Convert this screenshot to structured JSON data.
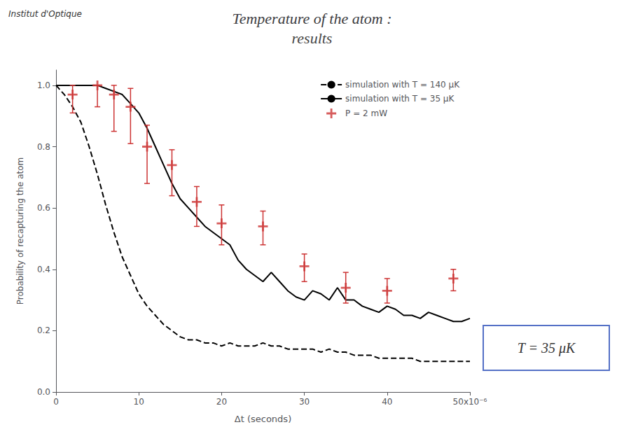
{
  "chart_data": {
    "type": "line",
    "title": "Temperature of the atom :",
    "subtitle": "results",
    "xlabel": "Δt (seconds)",
    "ylabel": "Probability of recapturing the atom",
    "xlim": [
      0,
      5e-05
    ],
    "ylim": [
      0,
      1.05
    ],
    "xticks": [
      0,
      {
        "value": 1e-05,
        "label": "10"
      },
      {
        "value": 2e-05,
        "label": "20"
      },
      {
        "value": 3e-05,
        "label": "30"
      },
      {
        "value": 4e-05,
        "label": "40"
      },
      {
        "value": 5e-05,
        "label": "50x10⁻⁶"
      }
    ],
    "yticks": [
      {
        "value": 0,
        "label": "0.0"
      },
      0.2,
      0.4,
      0.6,
      0.8,
      {
        "value": 1,
        "label": "1.0"
      }
    ],
    "grid": false,
    "legend": "upper right",
    "annotations": [
      "T = 35 μK",
      "Institut d'Optique"
    ],
    "series": [
      {
        "name": "simulation with T = 140 μK",
        "type": "line",
        "color": "#000000",
        "line_style": "dashed",
        "marker": "none",
        "x": [
          0,
          1e-06,
          2e-06,
          3e-06,
          4e-06,
          5e-06,
          6e-06,
          7e-06,
          8e-06,
          9e-06,
          1e-05,
          1.1e-05,
          1.2e-05,
          1.3e-05,
          1.4e-05,
          1.5e-05,
          1.6e-05,
          1.7e-05,
          1.8e-05,
          1.9e-05,
          2e-05,
          2.1e-05,
          2.2e-05,
          2.3e-05,
          2.4e-05,
          2.5e-05,
          2.6e-05,
          2.7e-05,
          2.8e-05,
          2.9e-05,
          3e-05,
          3.1e-05,
          3.2e-05,
          3.3e-05,
          3.4e-05,
          3.5e-05,
          3.6e-05,
          3.7e-05,
          3.8e-05,
          3.9e-05,
          4e-05,
          4.1e-05,
          4.2e-05,
          4.3e-05,
          4.4e-05,
          4.5e-05,
          4.6e-05,
          4.7e-05,
          4.8e-05,
          4.9e-05,
          5e-05
        ],
        "values": [
          1.0,
          0.97,
          0.93,
          0.88,
          0.8,
          0.71,
          0.61,
          0.52,
          0.44,
          0.38,
          0.32,
          0.28,
          0.25,
          0.22,
          0.2,
          0.18,
          0.17,
          0.17,
          0.16,
          0.16,
          0.15,
          0.16,
          0.15,
          0.15,
          0.15,
          0.16,
          0.15,
          0.15,
          0.14,
          0.14,
          0.14,
          0.14,
          0.13,
          0.14,
          0.13,
          0.13,
          0.12,
          0.12,
          0.12,
          0.11,
          0.11,
          0.11,
          0.11,
          0.11,
          0.1,
          0.1,
          0.1,
          0.1,
          0.1,
          0.1,
          0.1
        ]
      },
      {
        "name": "simulation with T = 35 μK",
        "type": "line",
        "color": "#000000",
        "line_style": "solid",
        "marker": "none",
        "x": [
          0,
          1e-06,
          2e-06,
          3e-06,
          4e-06,
          5e-06,
          6e-06,
          7e-06,
          8e-06,
          9e-06,
          1e-05,
          1.1e-05,
          1.2e-05,
          1.3e-05,
          1.4e-05,
          1.5e-05,
          1.6e-05,
          1.7e-05,
          1.8e-05,
          1.9e-05,
          2e-05,
          2.1e-05,
          2.2e-05,
          2.3e-05,
          2.4e-05,
          2.5e-05,
          2.6e-05,
          2.7e-05,
          2.8e-05,
          2.9e-05,
          3e-05,
          3.1e-05,
          3.2e-05,
          3.3e-05,
          3.4e-05,
          3.5e-05,
          3.6e-05,
          3.7e-05,
          3.8e-05,
          3.9e-05,
          4e-05,
          4.1e-05,
          4.2e-05,
          4.3e-05,
          4.4e-05,
          4.5e-05,
          4.6e-05,
          4.7e-05,
          4.8e-05,
          4.9e-05,
          5e-05
        ],
        "values": [
          1.0,
          1.0,
          1.0,
          1.0,
          1.0,
          1.0,
          0.99,
          0.98,
          0.97,
          0.94,
          0.91,
          0.86,
          0.8,
          0.74,
          0.68,
          0.63,
          0.6,
          0.57,
          0.54,
          0.52,
          0.5,
          0.48,
          0.43,
          0.4,
          0.38,
          0.36,
          0.39,
          0.36,
          0.33,
          0.31,
          0.3,
          0.33,
          0.32,
          0.3,
          0.34,
          0.3,
          0.3,
          0.28,
          0.27,
          0.26,
          0.28,
          0.27,
          0.25,
          0.25,
          0.24,
          0.26,
          0.25,
          0.24,
          0.23,
          0.23,
          0.24
        ]
      },
      {
        "name": "P = 2 mW",
        "type": "scatter",
        "color": "#cc3333",
        "marker": "plus",
        "x": [
          2e-06,
          5e-06,
          7e-06,
          9e-06,
          1.1e-05,
          1.4e-05,
          1.7e-05,
          2e-05,
          2.5e-05,
          3e-05,
          3.5e-05,
          4e-05,
          4.8e-05
        ],
        "values": [
          0.97,
          1.0,
          0.97,
          0.93,
          0.8,
          0.74,
          0.62,
          0.55,
          0.54,
          0.41,
          0.34,
          0.33,
          0.37
        ],
        "yerr_lo": [
          0.06,
          0.07,
          0.12,
          0.12,
          0.12,
          0.1,
          0.08,
          0.07,
          0.06,
          0.05,
          0.05,
          0.04,
          0.04
        ],
        "yerr_hi": [
          0.03,
          0.0,
          0.03,
          0.06,
          0.07,
          0.05,
          0.05,
          0.06,
          0.05,
          0.04,
          0.05,
          0.04,
          0.03
        ]
      }
    ]
  }
}
